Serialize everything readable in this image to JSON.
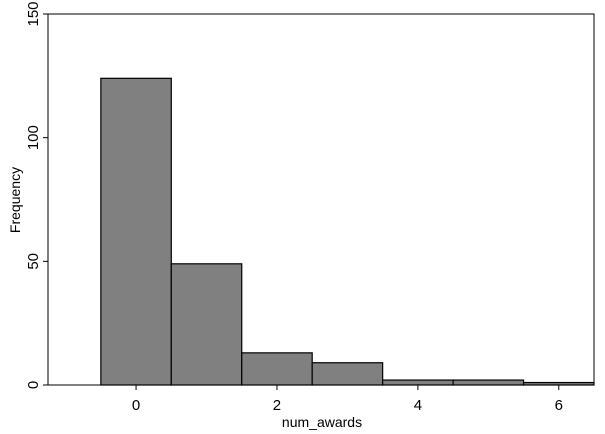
{
  "chart_data": {
    "type": "bar",
    "title": "",
    "xlabel": "num_awards",
    "ylabel": "Frequency",
    "xlim": [
      -1.25,
      6.5
    ],
    "ylim": [
      0,
      150
    ],
    "x_ticks": [
      0,
      2,
      4,
      6
    ],
    "y_ticks": [
      0,
      50,
      100,
      150
    ],
    "bins": [
      {
        "center": 0,
        "value": 124
      },
      {
        "center": 1,
        "value": 49
      },
      {
        "center": 2,
        "value": 13
      },
      {
        "center": 3,
        "value": 9
      },
      {
        "center": 4,
        "value": 2
      },
      {
        "center": 5,
        "value": 2
      },
      {
        "center": 6,
        "value": 1
      }
    ],
    "bin_width": 1,
    "bar_color": "#808080",
    "bar_edge_color": "#000000",
    "grid": false,
    "legend": "none"
  }
}
